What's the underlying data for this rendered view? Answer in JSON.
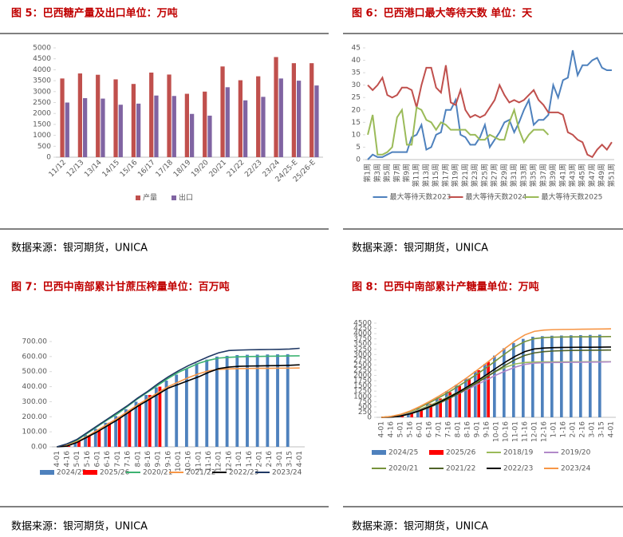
{
  "chart_data": [
    {
      "type": "bar",
      "title": "图 5：巴西糖产量及出口单位：万吨",
      "source": "数据来源：银河期货，UNICA",
      "categories": [
        "11/12",
        "12/13",
        "13/14",
        "14/15",
        "15/16",
        "16/17",
        "17/18",
        "18/19",
        "19/20",
        "20/21",
        "21/22",
        "22/23",
        "23/24",
        "24/25-E",
        "25/26-E"
      ],
      "series": [
        {
          "name": "产量",
          "color": "#c0504d",
          "values": [
            3600,
            3830,
            3770,
            3560,
            3350,
            3870,
            3780,
            2900,
            3000,
            4150,
            3520,
            3700,
            4580,
            4300,
            4300
          ]
        },
        {
          "name": "出口",
          "color": "#8064a2",
          "values": [
            2500,
            2700,
            2680,
            2400,
            2450,
            2820,
            2800,
            1980,
            1900,
            3200,
            2600,
            2760,
            3600,
            3500,
            3280
          ]
        }
      ],
      "ylim": [
        0,
        5000
      ],
      "yticks": [
        0,
        500,
        1000,
        1500,
        2000,
        2500,
        3000,
        3500,
        4000,
        4500,
        5000
      ],
      "legend": "bottom"
    },
    {
      "type": "line",
      "title": "图 6：巴西港口最大等待天数      单位：天",
      "source": "数据来源：银河期货，UNICA",
      "categories": [
        "第1周",
        null,
        "第3周",
        null,
        "第5周",
        null,
        "第7周",
        null,
        "第9周",
        null,
        "第11周",
        null,
        "第13周",
        null,
        "第15周",
        null,
        "第17周",
        null,
        "第19周",
        null,
        "第21周",
        null,
        "第23周",
        null,
        "第25周",
        null,
        "第27周",
        null,
        "第29周",
        null,
        "第31周",
        null,
        "第33周",
        null,
        "第35周",
        null,
        "第37周",
        null,
        "第39周",
        null,
        "第41周",
        null,
        "第43周",
        null,
        "第45周",
        null,
        "第47周",
        null,
        "第49周",
        null,
        "第51周"
      ],
      "series": [
        {
          "name": "最大等待天数2023",
          "color": "#4e81bd",
          "values": [
            0,
            2,
            1,
            1,
            2,
            3,
            3,
            3,
            3,
            9,
            10,
            14,
            4,
            5,
            10,
            11,
            20,
            20,
            24,
            10,
            9,
            6,
            6,
            9,
            14,
            5,
            8,
            11,
            15,
            16,
            11,
            15,
            20,
            24,
            14,
            16,
            16,
            18,
            30,
            25,
            32,
            33,
            44,
            34,
            38,
            38,
            40,
            41,
            37,
            36,
            36
          ]
        },
        {
          "name": "最大等待天数2024",
          "color": "#c0504d",
          "values": [
            30,
            28,
            30,
            33,
            26,
            25,
            26,
            29,
            29,
            28,
            21,
            30,
            37,
            37,
            29,
            27,
            38,
            23,
            22,
            28,
            20,
            17,
            18,
            17,
            18,
            21,
            24,
            30,
            26,
            23,
            24,
            23,
            24,
            26,
            28,
            24,
            22,
            19,
            19,
            19,
            18,
            11,
            10,
            8,
            7,
            2,
            1,
            4,
            6,
            4,
            7
          ]
        },
        {
          "name": "最大等待天数2025",
          "color": "#9bbb59",
          "values": [
            10,
            18,
            2,
            2,
            3,
            5,
            17,
            20,
            6,
            6,
            21,
            20,
            16,
            15,
            12,
            15,
            14,
            12,
            12,
            12,
            12,
            10,
            10,
            8,
            8,
            10,
            9,
            8,
            8,
            15,
            20,
            12,
            7,
            10,
            12,
            12,
            12,
            10,
            null,
            null,
            null,
            null,
            null,
            null,
            null,
            null,
            null,
            null,
            null,
            null,
            null
          ]
        }
      ],
      "ylim": [
        0,
        45
      ],
      "yticks": [
        0,
        5,
        10,
        15,
        20,
        25,
        30,
        35,
        40,
        45
      ],
      "legend": "bottom"
    },
    {
      "type": "combo",
      "title": "图 7：巴西中南部累计甘蔗压榨量单位：百万吨",
      "source": "数据来源：银河期货，UNICA",
      "categories": [
        "4-01",
        "4-16",
        "5-01",
        "5-16",
        "6-01",
        "6-16",
        "7-01",
        "7-16",
        "8-01",
        "8-16",
        "9-01",
        "9-16",
        "10-01",
        "10-16",
        "11-01",
        "11-16",
        "12-01",
        "12-16",
        "1-01",
        "1-16",
        "2-01",
        "2-16",
        "3-01",
        "3-15",
        "4-01"
      ],
      "series": [
        {
          "name": "2024/25",
          "type": "bar",
          "color": "#4e81bd",
          "values": [
            null,
            10,
            40,
            80,
            120,
            160,
            205,
            250,
            300,
            345,
            395,
            440,
            480,
            520,
            555,
            580,
            600,
            605,
            610,
            612,
            613,
            614,
            615,
            616,
            null
          ]
        },
        {
          "name": "2025/26",
          "type": "bar",
          "color": "#ff0000",
          "values": [
            null,
            5,
            35,
            75,
            115,
            160,
            200,
            245,
            290,
            345,
            400,
            null,
            null,
            null,
            null,
            null,
            null,
            null,
            null,
            null,
            null,
            null,
            null,
            null,
            null
          ]
        },
        {
          "name": "2020/21",
          "type": "line",
          "color": "#3cb371",
          "values": [
            0,
            15,
            45,
            90,
            135,
            180,
            220,
            270,
            320,
            365,
            410,
            455,
            495,
            525,
            555,
            575,
            590,
            595,
            598,
            600,
            601,
            602,
            603,
            604,
            605
          ]
        },
        {
          "name": "2021/22",
          "type": "line",
          "color": "#f79646",
          "values": [
            0,
            10,
            35,
            70,
            110,
            150,
            190,
            235,
            280,
            320,
            360,
            400,
            430,
            460,
            485,
            505,
            515,
            518,
            520,
            521,
            522,
            522,
            523,
            523,
            524
          ]
        },
        {
          "name": "2022/23",
          "type": "line",
          "color": "#000000",
          "values": [
            0,
            5,
            30,
            65,
            100,
            140,
            180,
            225,
            270,
            310,
            350,
            390,
            415,
            440,
            465,
            495,
            520,
            530,
            535,
            537,
            538,
            539,
            540,
            542,
            545
          ]
        },
        {
          "name": "2023/24",
          "type": "line",
          "color": "#1f3864",
          "values": [
            0,
            20,
            50,
            95,
            140,
            185,
            230,
            275,
            325,
            370,
            420,
            465,
            505,
            540,
            570,
            600,
            625,
            640,
            643,
            645,
            646,
            647,
            648,
            650,
            655
          ]
        }
      ],
      "ylim": [
        0,
        700
      ],
      "yticks": [
        {
          "value": 0,
          "label": "0.00"
        },
        {
          "value": 100,
          "label": "100.00"
        },
        {
          "value": 200,
          "label": "200.00"
        },
        {
          "value": 300,
          "label": "300.00"
        },
        {
          "value": 400,
          "label": "400.00"
        },
        {
          "value": 500,
          "label": "500.00"
        },
        {
          "value": 600,
          "label": "600.00"
        },
        {
          "value": 700,
          "label": "700.00"
        }
      ],
      "legend": "bottom"
    },
    {
      "type": "combo",
      "title": "图 8：巴西中南部累计产糖量单位：万吨",
      "source": "数据来源：银河期货，UNICA",
      "categories": [
        "4-01",
        "4-16",
        "5-01",
        "5-16",
        "6-01",
        "6-16",
        "7-01",
        "7-16",
        "8-01",
        "8-16",
        "9-01",
        "9-16",
        "10-01",
        "10-16",
        "11-01",
        "11-16",
        "12-01",
        "12-16",
        "1-01",
        "1-16",
        "2-01",
        "2-16",
        "3-01",
        "3-15",
        "4-01"
      ],
      "series": [
        {
          "name": "2024/25",
          "type": "bar",
          "color": "#4e81bd",
          "values": [
            null,
            30,
            100,
            250,
            450,
            700,
            950,
            1250,
            1550,
            1850,
            2200,
            2550,
            2950,
            3300,
            3550,
            3750,
            3850,
            3880,
            3900,
            3910,
            3920,
            3930,
            3940,
            3950,
            null
          ]
        },
        {
          "name": "2025/26",
          "type": "bar",
          "color": "#ff0000",
          "values": [
            null,
            20,
            90,
            230,
            430,
            650,
            900,
            1200,
            1500,
            1850,
            2250,
            2650,
            null,
            null,
            null,
            null,
            null,
            null,
            null,
            null,
            null,
            null,
            null,
            null,
            null
          ]
        },
        {
          "name": "2018/19",
          "type": "line",
          "color": "#9bbb59",
          "values": [
            0,
            30,
            100,
            220,
            380,
            560,
            760,
            980,
            1200,
            1450,
            1700,
            1950,
            2200,
            2400,
            2550,
            2620,
            2640,
            2650,
            2650,
            2650,
            2655,
            2655,
            2660,
            2660,
            2660
          ]
        },
        {
          "name": "2019/20",
          "type": "line",
          "color": "#b189c9",
          "values": [
            0,
            20,
            80,
            190,
            340,
            510,
            700,
            900,
            1110,
            1330,
            1560,
            1790,
            2020,
            2220,
            2400,
            2530,
            2590,
            2610,
            2620,
            2625,
            2630,
            2635,
            2640,
            2645,
            2650
          ]
        },
        {
          "name": "2020/21",
          "type": "line",
          "color": "#77933c",
          "values": [
            0,
            40,
            130,
            280,
            470,
            690,
            930,
            1190,
            1470,
            1760,
            2060,
            2380,
            2720,
            3060,
            3380,
            3620,
            3760,
            3810,
            3830,
            3840,
            3845,
            3850,
            3850,
            3855,
            3860
          ]
        },
        {
          "name": "2021/22",
          "type": "line",
          "color": "#4f6228",
          "values": [
            0,
            10,
            60,
            160,
            300,
            470,
            660,
            880,
            1120,
            1380,
            1650,
            1930,
            2220,
            2500,
            2760,
            2960,
            3080,
            3140,
            3170,
            3185,
            3195,
            3200,
            3205,
            3210,
            3215
          ]
        },
        {
          "name": "2022/23",
          "type": "line",
          "color": "#000000",
          "values": [
            0,
            10,
            60,
            170,
            320,
            500,
            710,
            940,
            1190,
            1460,
            1740,
            2040,
            2350,
            2650,
            2920,
            3140,
            3270,
            3310,
            3330,
            3340,
            3345,
            3350,
            3350,
            3355,
            3360
          ]
        },
        {
          "name": "2023/24",
          "type": "line",
          "color": "#f79646",
          "values": [
            0,
            40,
            140,
            300,
            510,
            750,
            1010,
            1290,
            1590,
            1910,
            2250,
            2600,
            2960,
            3320,
            3660,
            3940,
            4110,
            4170,
            4190,
            4200,
            4205,
            4210,
            4215,
            4220,
            4230
          ]
        }
      ],
      "ylim": [
        0,
        4500
      ],
      "yticks": [
        0,
        250,
        500,
        750,
        1000,
        1250,
        1500,
        1750,
        2000,
        2250,
        2500,
        2750,
        3000,
        3250,
        3500,
        3750,
        4000,
        4250,
        4500
      ],
      "legend": "bottom"
    }
  ]
}
